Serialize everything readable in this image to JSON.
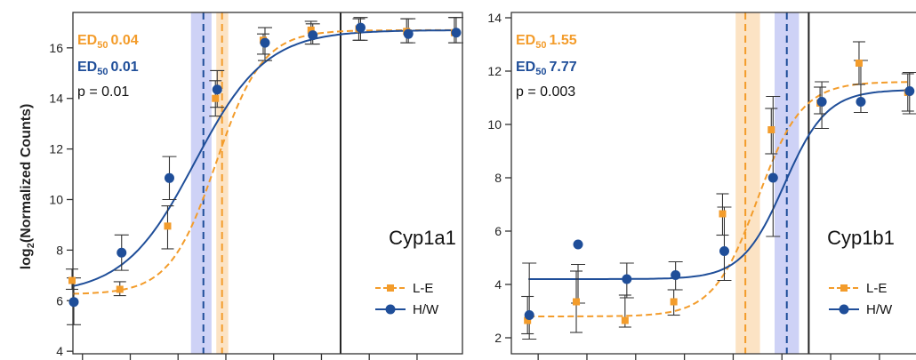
{
  "ylabel_main": "log",
  "ylabel_sub": "2",
  "ylabel_rest": "(Normalized Counts)",
  "colors": {
    "le": "#f39c2b",
    "hw": "#1f4e99",
    "le_band": "#fce3c4",
    "hw_band": "#c9cdf5",
    "axis": "#333333"
  },
  "chart_data": [
    {
      "type": "scatter",
      "gene_label": "Cyp1a1",
      "ylim": [
        3.9,
        17.4
      ],
      "yticks": [
        4,
        6,
        8,
        10,
        12,
        14,
        16
      ],
      "ed50": [
        {
          "sub": "50",
          "prefix": "ED",
          "value": "0.04",
          "series": "L-E"
        },
        {
          "sub": "50",
          "prefix": "ED",
          "value": "0.01",
          "series": "H/W"
        }
      ],
      "p_text": "p = 0.01",
      "legend": {
        "position": "bottom-right",
        "entries": [
          "L-E",
          "H/W"
        ]
      },
      "ed50_lines": {
        "L-E": 3.12,
        "H/W": 2.73,
        "L-E_band": [
          3.0,
          3.25
        ],
        "H/W_band": [
          2.47,
          2.9
        ]
      },
      "vline": 5.6,
      "xlim": [
        0,
        8.15
      ],
      "x_ticks": [
        0.2,
        1.2,
        2.2,
        3.2,
        4.2,
        5.2,
        6.2,
        7.2
      ],
      "series": [
        {
          "name": "L-E",
          "x": [
            0,
            1,
            2,
            3,
            4,
            5,
            6,
            7,
            8
          ],
          "y": [
            6.8,
            6.45,
            8.95,
            14.0,
            16.3,
            16.7,
            16.75,
            16.65,
            16.6
          ],
          "err": [
            [
              6.45,
              7.25
            ],
            [
              6.2,
              6.75
            ],
            [
              8.05,
              9.75
            ],
            [
              13.3,
              14.7
            ],
            [
              15.75,
              16.55
            ],
            [
              16.15,
              17.05
            ],
            [
              16.3,
              17.15
            ],
            [
              16.2,
              17.15
            ],
            [
              16.2,
              17.2
            ]
          ],
          "curve": {
            "base": 6.25,
            "top": 16.7,
            "mid": 3.0,
            "slope": 2.05
          }
        },
        {
          "name": "H/W",
          "x": [
            0,
            1,
            2,
            3,
            4,
            5,
            6,
            7,
            8
          ],
          "y": [
            5.95,
            7.9,
            10.85,
            14.35,
            16.2,
            16.5,
            16.8,
            16.55,
            16.6
          ],
          "err": [
            [
              5.05,
              6.9
            ],
            [
              7.2,
              8.6
            ],
            [
              10.0,
              11.7
            ],
            [
              13.65,
              15.1
            ],
            [
              15.5,
              16.8
            ],
            [
              16.15,
              16.95
            ],
            [
              16.3,
              17.2
            ],
            [
              16.2,
              17.15
            ],
            [
              16.2,
              17.2
            ]
          ],
          "curve": {
            "base": 6.25,
            "top": 16.7,
            "mid": 2.55,
            "slope": 1.35
          }
        }
      ]
    },
    {
      "type": "scatter",
      "gene_label": "Cyp1b1",
      "ylim": [
        1.4,
        14.2
      ],
      "yticks": [
        2,
        4,
        6,
        8,
        10,
        12,
        14
      ],
      "ed50": [
        {
          "sub": "50",
          "prefix": "ED",
          "value": "1.55",
          "series": "L-E"
        },
        {
          "sub": "50",
          "prefix": "ED",
          "value": "7.77",
          "series": "H/W"
        }
      ],
      "p_text": "p = 0.003",
      "legend": {
        "position": "bottom-right",
        "entries": [
          "L-E",
          "H/W"
        ]
      },
      "ed50_lines": {
        "L-E": 4.45,
        "H/W": 5.3,
        "L-E_band": [
          4.25,
          4.75
        ],
        "H/W_band": [
          5.05,
          5.55
        ]
      },
      "vline": 5.75,
      "xlim": [
        -0.35,
        7.95
      ],
      "x_ticks": [
        0.2,
        1.2,
        2.2,
        3.2,
        4.2,
        5.2,
        6.2,
        7.2
      ],
      "series": [
        {
          "name": "L-E",
          "x": [
            0,
            1,
            2,
            3,
            4,
            5,
            6,
            6.8,
            7.8
          ],
          "y": [
            2.65,
            3.35,
            2.65,
            3.35,
            6.65,
            9.8,
            10.8,
            12.3,
            11.2
          ],
          "err": [
            [
              2.15,
              3.55
            ],
            [
              2.2,
              4.5
            ],
            [
              2.4,
              3.6
            ],
            [
              2.85,
              3.8
            ],
            [
              5.85,
              7.4
            ],
            [
              8.9,
              10.6
            ],
            [
              10.4,
              11.4
            ],
            [
              11.5,
              13.1
            ],
            [
              10.5,
              11.9
            ]
          ],
          "curve": {
            "base": 2.8,
            "top": 11.6,
            "mid": 4.7,
            "slope": 2.2
          }
        },
        {
          "name": "H/W",
          "x": [
            0,
            1,
            2,
            3,
            4,
            5,
            6,
            6.8,
            7.8
          ],
          "y": [
            2.85,
            5.5,
            4.2,
            4.35,
            5.25,
            8.0,
            10.85,
            10.85,
            11.25
          ],
          "err": [
            [
              1.95,
              4.8
            ],
            [
              3.3,
              4.75
            ],
            [
              3.5,
              4.8
            ],
            [
              3.8,
              4.85
            ],
            [
              4.15,
              6.9
            ],
            [
              5.8,
              11.05
            ],
            [
              9.85,
              11.6
            ],
            [
              10.45,
              12.4
            ],
            [
              10.4,
              11.95
            ]
          ],
          "curve": {
            "base": 4.2,
            "top": 11.3,
            "mid": 5.25,
            "slope": 2.3
          }
        }
      ]
    }
  ]
}
